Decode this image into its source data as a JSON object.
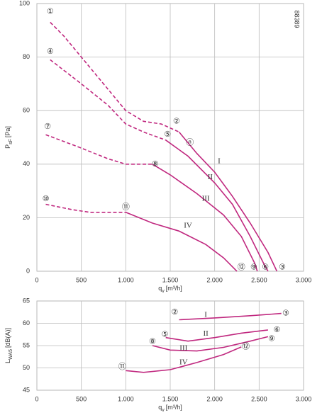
{
  "chart_data": [
    {
      "type": "line",
      "code": "88389",
      "ylabel": {
        "main": "P",
        "sub": "sF",
        "unit": "[Pa]"
      },
      "xlabel": {
        "main": "q",
        "sub": "v",
        "unit": "[m³/h]"
      },
      "xlim": [
        0,
        3000
      ],
      "xticks": [
        0,
        500,
        {
          "value": 1000,
          "label": "1.000"
        },
        {
          "value": 1500,
          "label": "1.500"
        },
        {
          "value": 2000,
          "label": "2.000"
        },
        {
          "value": 2500,
          "label": "2.500"
        },
        {
          "value": 3000,
          "label": "3.000"
        }
      ],
      "ylim": [
        0,
        100
      ],
      "yticks": [
        0,
        20,
        40,
        60,
        80,
        100
      ],
      "grid": true,
      "series": [
        {
          "name": "I",
          "color": "#c0287f",
          "label_x": 2050,
          "label_y": 41,
          "segments": [
            {
              "style": "dashed",
              "x": [
                150,
                300,
                500,
                700,
                1000,
                1200,
                1400,
                1600
              ],
              "values": [
                93,
                88,
                80,
                72,
                60,
                56,
                55,
                52
              ]
            },
            {
              "style": "solid",
              "x": [
                1600,
                1800,
                2000,
                2200,
                2400,
                2600,
                2700
              ],
              "values": [
                52,
                44,
                37,
                28,
                18,
                7,
                0
              ]
            }
          ]
        },
        {
          "name": "II",
          "color": "#c0287f",
          "label_x": 1950,
          "label_y": 35,
          "segments": [
            {
              "style": "dashed",
              "x": [
                150,
                500,
                800,
                1000,
                1200,
                1450
              ],
              "values": [
                79,
                70,
                62,
                55,
                52,
                49
              ]
            },
            {
              "style": "solid",
              "x": [
                1450,
                1700,
                2000,
                2200,
                2400,
                2550,
                2600
              ],
              "values": [
                49,
                43,
                33,
                25,
                13,
                3,
                0
              ]
            }
          ]
        },
        {
          "name": "III",
          "color": "#c0287f",
          "label_x": 1900,
          "label_y": 27,
          "segments": [
            {
              "style": "dashed",
              "x": [
                100,
                500,
                800,
                1000,
                1300
              ],
              "values": [
                51,
                46,
                42,
                40,
                40
              ]
            },
            {
              "style": "solid",
              "x": [
                1300,
                1500,
                1800,
                2100,
                2300,
                2450,
                2480
              ],
              "values": [
                40,
                36,
                29,
                21,
                13,
                3,
                0
              ]
            }
          ]
        },
        {
          "name": "IV",
          "color": "#c0287f",
          "label_x": 1700,
          "label_y": 17,
          "segments": [
            {
              "style": "dashed",
              "x": [
                100,
                400,
                600,
                800,
                1000
              ],
              "values": [
                25,
                23,
                22,
                22,
                22
              ]
            },
            {
              "style": "solid",
              "x": [
                1000,
                1300,
                1600,
                1900,
                2100,
                2250
              ],
              "values": [
                22,
                18,
                15,
                10,
                5,
                0
              ]
            }
          ]
        }
      ],
      "annotations": [
        {
          "text": "①",
          "x": 150,
          "y": 97,
          "color": "#c0287f"
        },
        {
          "text": "④",
          "x": 150,
          "y": 82,
          "color": "#c0287f"
        },
        {
          "text": "⑦",
          "x": 120,
          "y": 54,
          "color": "#c0287f"
        },
        {
          "text": "⑩",
          "x": 100,
          "y": 27,
          "color": "#c0287f"
        },
        {
          "text": "②",
          "x": 1570,
          "y": 56,
          "color": "#c0287f"
        },
        {
          "text": "⑤",
          "x": 1470,
          "y": 51,
          "color": "#c0287f"
        },
        {
          "text": "ⓝ",
          "x": 1720,
          "y": 48,
          "color": "#222222"
        },
        {
          "text": "⑧",
          "x": 1330,
          "y": 40,
          "color": "#c0287f"
        },
        {
          "text": "⑪",
          "x": 1000,
          "y": 24,
          "color": "#c0287f"
        },
        {
          "text": "⑫",
          "x": 2300,
          "y": 1.5,
          "color": "#c0287f"
        },
        {
          "text": "⑨",
          "x": 2440,
          "y": 1.5,
          "color": "#c0287f"
        },
        {
          "text": "⑥",
          "x": 2570,
          "y": 1.5,
          "color": "#c0287f"
        },
        {
          "text": "③",
          "x": 2760,
          "y": 1.5,
          "color": "#c0287f"
        }
      ]
    },
    {
      "type": "line",
      "ylabel": {
        "main": "L",
        "sub": "WA5",
        "unit": "[dB(A)]"
      },
      "xlabel": {
        "main": "q",
        "sub": "v",
        "unit": "[m³/h]"
      },
      "xlim": [
        0,
        3000
      ],
      "xticks": [
        0,
        500,
        {
          "value": 1000,
          "label": "1.000"
        },
        {
          "value": 1500,
          "label": "1.500"
        },
        {
          "value": 2000,
          "label": "2.000"
        },
        {
          "value": 2500,
          "label": "2.500"
        },
        {
          "value": 3000,
          "label": "3.000"
        }
      ],
      "ylim": [
        45,
        65
      ],
      "yticks": [
        45,
        50,
        55,
        60,
        65
      ],
      "grid": true,
      "series": [
        {
          "name": "I",
          "color": "#c0287f",
          "label_x": 1900,
          "label_y": 61.8,
          "segments": [
            {
              "style": "solid",
              "x": [
                1600,
                2000,
                2400,
                2750
              ],
              "values": [
                60.8,
                61.2,
                61.7,
                62.2
              ]
            }
          ]
        },
        {
          "name": "II",
          "color": "#c0287f",
          "label_x": 1900,
          "label_y": 57.6,
          "segments": [
            {
              "style": "solid",
              "x": [
                1450,
                1700,
                2000,
                2300,
                2600
              ],
              "values": [
                56.8,
                56,
                56.8,
                57.8,
                58.5
              ]
            }
          ]
        },
        {
          "name": "III",
          "color": "#c0287f",
          "label_x": 1650,
          "label_y": 54.4,
          "segments": [
            {
              "style": "solid",
              "x": [
                1300,
                1500,
                1800,
                2100,
                2400,
                2600
              ],
              "values": [
                55,
                54,
                53.8,
                54.6,
                56,
                57
              ]
            }
          ]
        },
        {
          "name": "IV",
          "color": "#c0287f",
          "label_x": 1650,
          "label_y": 51.2,
          "segments": [
            {
              "style": "solid",
              "x": [
                1000,
                1200,
                1500,
                1800,
                2100,
                2300
              ],
              "values": [
                49.4,
                49,
                49.6,
                51.2,
                53,
                54.7
              ]
            }
          ]
        }
      ],
      "annotations": [
        {
          "text": "②",
          "x": 1550,
          "y": 62.5,
          "color": "#c0287f"
        },
        {
          "text": "③",
          "x": 2800,
          "y": 62.2,
          "color": "#c0287f"
        },
        {
          "text": "⑤",
          "x": 1440,
          "y": 57.5,
          "color": "#c0287f"
        },
        {
          "text": "⑥",
          "x": 2700,
          "y": 58.5,
          "color": "#c0287f"
        },
        {
          "text": "⑧",
          "x": 1300,
          "y": 55.9,
          "color": "#c0287f"
        },
        {
          "text": "⑨",
          "x": 2640,
          "y": 56.5,
          "color": "#c0287f"
        },
        {
          "text": "⑪",
          "x": 960,
          "y": 50.2,
          "color": "#c0287f"
        },
        {
          "text": "⑫",
          "x": 2350,
          "y": 54.8,
          "color": "#c0287f"
        }
      ]
    }
  ]
}
